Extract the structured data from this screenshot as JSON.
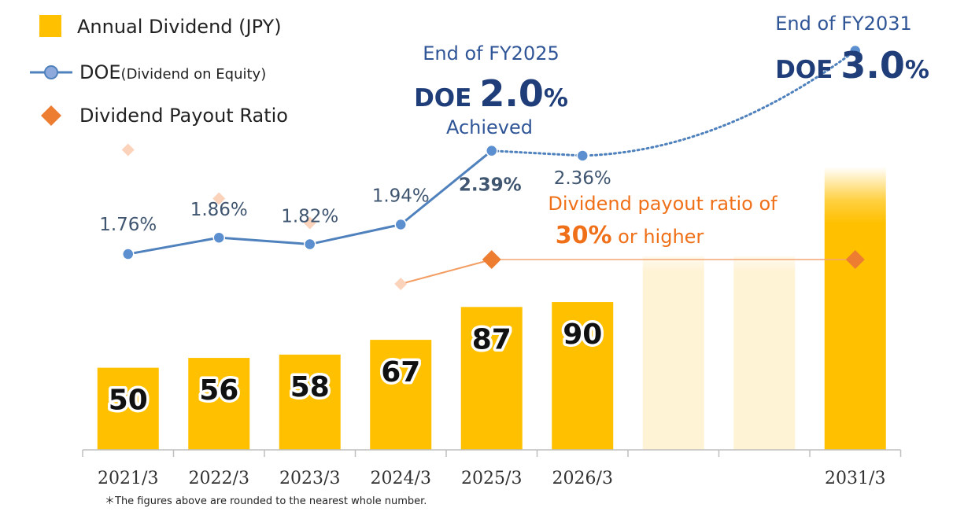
{
  "legend": {
    "dividend": "Annual Dividend (JPY)",
    "doe_main": "DOE",
    "doe_sub": "(Dividend on Equity)",
    "payout": "Dividend Payout Ratio"
  },
  "annotations": {
    "fy2025_title": "End of FY2025",
    "fy2025_doe_prefix": "DOE",
    "fy2025_doe_value": "2.0",
    "fy2025_doe_unit": "%",
    "fy2025_status": "Achieved",
    "fy2031_title": "End of FY2031",
    "fy2031_doe_prefix": "DOE",
    "fy2031_doe_value": "3.0",
    "fy2031_doe_unit": "%",
    "payout_line1": "Dividend payout ratio of",
    "payout_big": "30%",
    "payout_rest": " or higher"
  },
  "footnote": "＊The figures above are rounded to the nearest whole number.",
  "colors": {
    "bar": "#ffc000",
    "bar_future": "#fff3d6",
    "doe_line": "#4f81bd",
    "doe_marker": "#5b8fd0",
    "payout": "#ed7d31",
    "payout_faded": "#fbd3bb"
  },
  "chart_data": {
    "type": "bar",
    "categories": [
      "2021/3",
      "2022/3",
      "2023/3",
      "2024/3",
      "2025/3",
      "2026/3",
      "",
      "",
      "2031/3"
    ],
    "series": [
      {
        "name": "Annual Dividend (JPY)",
        "type": "bar",
        "values": [
          50,
          56,
          58,
          67,
          87,
          90,
          null,
          null,
          null
        ],
        "labels": [
          "50",
          "56",
          "58",
          "67",
          "87",
          "90",
          "",
          "",
          ""
        ]
      },
      {
        "name": "DOE (Dividend on Equity)",
        "type": "line",
        "unit": "%",
        "values": [
          1.76,
          1.86,
          1.82,
          1.94,
          2.39,
          2.36,
          null,
          null,
          3.0
        ],
        "labels": [
          "1.76%",
          "1.86%",
          "1.82%",
          "1.94%",
          "2.39%",
          "2.36%",
          "",
          "",
          ""
        ]
      },
      {
        "name": "Dividend Payout Ratio",
        "type": "scatter",
        "unit": "%",
        "values": [
          39,
          35,
          33,
          28,
          30,
          null,
          null,
          null,
          30
        ]
      }
    ],
    "bar_ylim": [
      0,
      170
    ],
    "doe_ylim": [
      0,
      4.0
    ],
    "payout_ylim": [
      0,
      70
    ],
    "title": "",
    "xlabel": "",
    "ylabel": ""
  }
}
